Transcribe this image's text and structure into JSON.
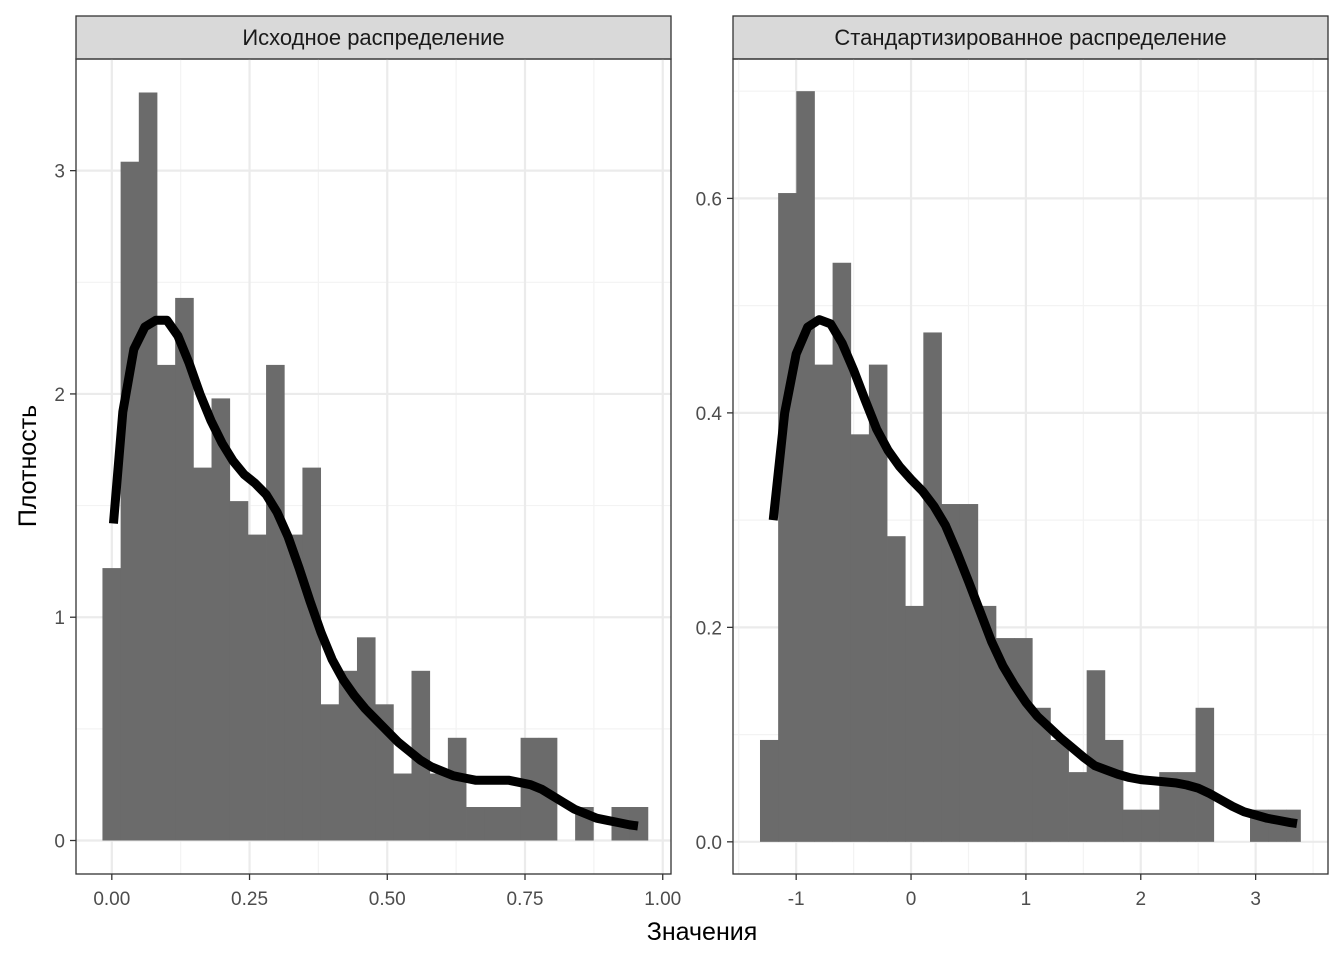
{
  "chart_data": {
    "type": "histogram+density",
    "xlabel": "Значения",
    "ylabel": "Плотность",
    "colors": {
      "bar": "#6b6b6b",
      "density": "#000000",
      "strip_bg": "#d9d9d9",
      "grid_major": "#ebebeb",
      "grid_minor": "#f3f3f3",
      "panel_border": "#333333"
    },
    "panels": [
      {
        "title": "Исходное распределение",
        "xlim": [
          -0.065,
          1.015
        ],
        "ylim": [
          -0.15,
          3.5
        ],
        "xticks": [
          {
            "value": 0,
            "label": "0.00"
          },
          {
            "value": 0.25,
            "label": "0.25"
          },
          {
            "value": 0.5,
            "label": "0.50"
          },
          {
            "value": 0.75,
            "label": "0.75"
          },
          {
            "value": 1.0,
            "label": "1.00"
          }
        ],
        "yticks": [
          {
            "value": 0,
            "label": "0"
          },
          {
            "value": 1,
            "label": "1"
          },
          {
            "value": 2,
            "label": "2"
          },
          {
            "value": 3,
            "label": "3"
          }
        ],
        "bins": [
          {
            "x0": -0.017,
            "x1": 0.016,
            "density": 1.22
          },
          {
            "x0": 0.016,
            "x1": 0.049,
            "density": 3.04
          },
          {
            "x0": 0.049,
            "x1": 0.082,
            "density": 3.35
          },
          {
            "x0": 0.082,
            "x1": 0.115,
            "density": 2.13
          },
          {
            "x0": 0.115,
            "x1": 0.148,
            "density": 2.43
          },
          {
            "x0": 0.148,
            "x1": 0.181,
            "density": 1.67
          },
          {
            "x0": 0.181,
            "x1": 0.214,
            "density": 1.98
          },
          {
            "x0": 0.214,
            "x1": 0.247,
            "density": 1.52
          },
          {
            "x0": 0.247,
            "x1": 0.28,
            "density": 1.37
          },
          {
            "x0": 0.28,
            "x1": 0.313,
            "density": 2.13
          },
          {
            "x0": 0.313,
            "x1": 0.346,
            "density": 1.37
          },
          {
            "x0": 0.346,
            "x1": 0.379,
            "density": 1.67
          },
          {
            "x0": 0.379,
            "x1": 0.412,
            "density": 0.61
          },
          {
            "x0": 0.412,
            "x1": 0.445,
            "density": 0.76
          },
          {
            "x0": 0.445,
            "x1": 0.478,
            "density": 0.91
          },
          {
            "x0": 0.478,
            "x1": 0.511,
            "density": 0.61
          },
          {
            "x0": 0.511,
            "x1": 0.544,
            "density": 0.3
          },
          {
            "x0": 0.544,
            "x1": 0.577,
            "density": 0.76
          },
          {
            "x0": 0.577,
            "x1": 0.61,
            "density": 0.3
          },
          {
            "x0": 0.61,
            "x1": 0.643,
            "density": 0.46
          },
          {
            "x0": 0.643,
            "x1": 0.676,
            "density": 0.15
          },
          {
            "x0": 0.676,
            "x1": 0.709,
            "density": 0.15
          },
          {
            "x0": 0.709,
            "x1": 0.742,
            "density": 0.15
          },
          {
            "x0": 0.742,
            "x1": 0.775,
            "density": 0.46
          },
          {
            "x0": 0.775,
            "x1": 0.808,
            "density": 0.46
          },
          {
            "x0": 0.808,
            "x1": 0.841,
            "density": 0
          },
          {
            "x0": 0.841,
            "x1": 0.874,
            "density": 0.15
          },
          {
            "x0": 0.874,
            "x1": 0.907,
            "density": 0
          },
          {
            "x0": 0.907,
            "x1": 0.94,
            "density": 0.15
          },
          {
            "x0": 0.94,
            "x1": 0.973,
            "density": 0.15
          }
        ],
        "density": [
          [
            0.003,
            1.42
          ],
          [
            0.02,
            1.92
          ],
          [
            0.04,
            2.2
          ],
          [
            0.06,
            2.3
          ],
          [
            0.08,
            2.33
          ],
          [
            0.1,
            2.33
          ],
          [
            0.12,
            2.26
          ],
          [
            0.14,
            2.14
          ],
          [
            0.16,
            2.0
          ],
          [
            0.18,
            1.88
          ],
          [
            0.2,
            1.78
          ],
          [
            0.22,
            1.7
          ],
          [
            0.24,
            1.64
          ],
          [
            0.26,
            1.6
          ],
          [
            0.28,
            1.55
          ],
          [
            0.3,
            1.47
          ],
          [
            0.32,
            1.36
          ],
          [
            0.34,
            1.22
          ],
          [
            0.36,
            1.07
          ],
          [
            0.38,
            0.93
          ],
          [
            0.4,
            0.81
          ],
          [
            0.42,
            0.72
          ],
          [
            0.44,
            0.65
          ],
          [
            0.46,
            0.59
          ],
          [
            0.48,
            0.54
          ],
          [
            0.5,
            0.49
          ],
          [
            0.52,
            0.44
          ],
          [
            0.54,
            0.4
          ],
          [
            0.56,
            0.36
          ],
          [
            0.58,
            0.33
          ],
          [
            0.6,
            0.31
          ],
          [
            0.62,
            0.29
          ],
          [
            0.64,
            0.28
          ],
          [
            0.66,
            0.27
          ],
          [
            0.68,
            0.27
          ],
          [
            0.7,
            0.27
          ],
          [
            0.72,
            0.27
          ],
          [
            0.74,
            0.26
          ],
          [
            0.76,
            0.25
          ],
          [
            0.78,
            0.23
          ],
          [
            0.8,
            0.2
          ],
          [
            0.82,
            0.17
          ],
          [
            0.84,
            0.14
          ],
          [
            0.86,
            0.12
          ],
          [
            0.88,
            0.1
          ],
          [
            0.9,
            0.09
          ],
          [
            0.92,
            0.08
          ],
          [
            0.94,
            0.07
          ],
          [
            0.955,
            0.065
          ]
        ]
      },
      {
        "title": "Стандартизированное распределение",
        "xlim": [
          -1.55,
          3.63
        ],
        "ylim": [
          -0.03,
          0.73
        ],
        "xticks": [
          {
            "value": -1,
            "label": "-1"
          },
          {
            "value": 0,
            "label": "0"
          },
          {
            "value": 1,
            "label": "1"
          },
          {
            "value": 2,
            "label": "2"
          },
          {
            "value": 3,
            "label": "3"
          }
        ],
        "yticks": [
          {
            "value": 0,
            "label": "0.0"
          },
          {
            "value": 0.2,
            "label": "0.2"
          },
          {
            "value": 0.4,
            "label": "0.4"
          },
          {
            "value": 0.6,
            "label": "0.6"
          }
        ],
        "bins": [
          {
            "x0": -1.315,
            "x1": -1.157,
            "density": 0.095
          },
          {
            "x0": -1.157,
            "x1": -0.999,
            "density": 0.605
          },
          {
            "x0": -0.999,
            "x1": -0.841,
            "density": 0.7
          },
          {
            "x0": -0.841,
            "x1": -0.683,
            "density": 0.445
          },
          {
            "x0": -0.683,
            "x1": -0.525,
            "density": 0.54
          },
          {
            "x0": -0.525,
            "x1": -0.367,
            "density": 0.38
          },
          {
            "x0": -0.367,
            "x1": -0.209,
            "density": 0.445
          },
          {
            "x0": -0.209,
            "x1": -0.051,
            "density": 0.285
          },
          {
            "x0": -0.051,
            "x1": 0.107,
            "density": 0.22
          },
          {
            "x0": 0.107,
            "x1": 0.265,
            "density": 0.475
          },
          {
            "x0": 0.265,
            "x1": 0.423,
            "density": 0.315
          },
          {
            "x0": 0.423,
            "x1": 0.581,
            "density": 0.315
          },
          {
            "x0": 0.581,
            "x1": 0.739,
            "density": 0.22
          },
          {
            "x0": 0.739,
            "x1": 0.897,
            "density": 0.19
          },
          {
            "x0": 0.897,
            "x1": 1.055,
            "density": 0.19
          },
          {
            "x0": 1.055,
            "x1": 1.213,
            "density": 0.125
          },
          {
            "x0": 1.213,
            "x1": 1.371,
            "density": 0.095
          },
          {
            "x0": 1.371,
            "x1": 1.529,
            "density": 0.065
          },
          {
            "x0": 1.529,
            "x1": 1.687,
            "density": 0.16
          },
          {
            "x0": 1.687,
            "x1": 1.845,
            "density": 0.095
          },
          {
            "x0": 1.845,
            "x1": 2.003,
            "density": 0.03
          },
          {
            "x0": 2.003,
            "x1": 2.161,
            "density": 0.03
          },
          {
            "x0": 2.161,
            "x1": 2.319,
            "density": 0.065
          },
          {
            "x0": 2.319,
            "x1": 2.477,
            "density": 0.065
          },
          {
            "x0": 2.477,
            "x1": 2.635,
            "density": 0.125
          },
          {
            "x0": 2.635,
            "x1": 2.793,
            "density": 0
          },
          {
            "x0": 2.793,
            "x1": 2.951,
            "density": 0
          },
          {
            "x0": 2.951,
            "x1": 3.109,
            "density": 0.03
          },
          {
            "x0": 3.109,
            "x1": 3.267,
            "density": 0.03
          },
          {
            "x0": 3.267,
            "x1": 3.39,
            "density": 0.03
          }
        ],
        "density": [
          [
            -1.2,
            0.3
          ],
          [
            -1.1,
            0.4
          ],
          [
            -1.0,
            0.455
          ],
          [
            -0.9,
            0.48
          ],
          [
            -0.8,
            0.487
          ],
          [
            -0.7,
            0.483
          ],
          [
            -0.6,
            0.465
          ],
          [
            -0.5,
            0.44
          ],
          [
            -0.4,
            0.412
          ],
          [
            -0.3,
            0.385
          ],
          [
            -0.2,
            0.365
          ],
          [
            -0.1,
            0.35
          ],
          [
            0.0,
            0.338
          ],
          [
            0.1,
            0.327
          ],
          [
            0.2,
            0.313
          ],
          [
            0.3,
            0.295
          ],
          [
            0.4,
            0.27
          ],
          [
            0.5,
            0.243
          ],
          [
            0.6,
            0.215
          ],
          [
            0.7,
            0.187
          ],
          [
            0.8,
            0.164
          ],
          [
            0.9,
            0.146
          ],
          [
            1.0,
            0.13
          ],
          [
            1.1,
            0.117
          ],
          [
            1.2,
            0.107
          ],
          [
            1.3,
            0.097
          ],
          [
            1.4,
            0.088
          ],
          [
            1.5,
            0.079
          ],
          [
            1.6,
            0.071
          ],
          [
            1.7,
            0.067
          ],
          [
            1.8,
            0.063
          ],
          [
            1.9,
            0.06
          ],
          [
            2.0,
            0.058
          ],
          [
            2.1,
            0.057
          ],
          [
            2.2,
            0.056
          ],
          [
            2.3,
            0.055
          ],
          [
            2.4,
            0.053
          ],
          [
            2.5,
            0.05
          ],
          [
            2.6,
            0.045
          ],
          [
            2.7,
            0.039
          ],
          [
            2.8,
            0.033
          ],
          [
            2.9,
            0.028
          ],
          [
            3.0,
            0.025
          ],
          [
            3.1,
            0.022
          ],
          [
            3.2,
            0.02
          ],
          [
            3.3,
            0.018
          ],
          [
            3.36,
            0.017
          ]
        ]
      }
    ]
  }
}
